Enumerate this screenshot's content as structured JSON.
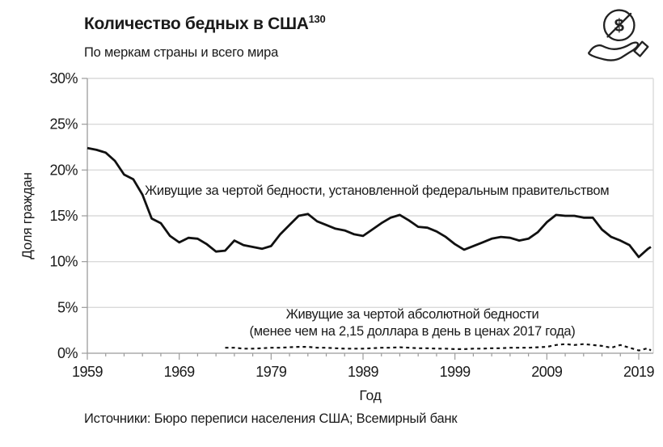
{
  "header": {
    "title": "Количество бедных в США",
    "footnote_ref": "130",
    "subtitle": "По меркам страны и всего мира",
    "icon": "crossed-dollar-in-hand-icon"
  },
  "footer": {
    "source": "Источники: Бюро переписи населения США; Всемирный банк"
  },
  "chart_data": {
    "type": "line",
    "title": "Количество бедных в США",
    "subtitle": "По меркам страны и всего мира",
    "xlabel": "Год",
    "ylabel": "Доля граждан",
    "x_axis": {
      "min": 1959,
      "max": 2021,
      "minor_tick_step": 2
    },
    "y_axis": {
      "min": 0,
      "max": 30,
      "unit": "%"
    },
    "x_ticks": [
      {
        "value": 1959,
        "label": "1959"
      },
      {
        "value": 1969,
        "label": "1969"
      },
      {
        "value": 1979,
        "label": "1979"
      },
      {
        "value": 1989,
        "label": "1989"
      },
      {
        "value": 1999,
        "label": "1999"
      },
      {
        "value": 2009,
        "label": "2009"
      },
      {
        "value": 2019,
        "label": "2019"
      }
    ],
    "y_ticks": [
      {
        "value": 0,
        "label": "0%"
      },
      {
        "value": 5,
        "label": "5%"
      },
      {
        "value": 10,
        "label": "10%"
      },
      {
        "value": 15,
        "label": "15%"
      },
      {
        "value": 20,
        "label": "20%"
      },
      {
        "value": 25,
        "label": "25%"
      },
      {
        "value": 30,
        "label": "30%"
      }
    ],
    "grid": true,
    "legend_position": "inline-annotations",
    "colors": {
      "line": "#111111",
      "grid": "#dadada",
      "axis": "#9b9b9b",
      "text": "#1a1a1a"
    },
    "series": [
      {
        "name": "federal-poverty-line",
        "label": "Живущие за чертой бедности, установленной федеральным правительством",
        "style": "solid",
        "width": 2.8,
        "color": "#111111",
        "start_year": 1959,
        "values": [
          22.4,
          22.2,
          21.9,
          21.0,
          19.5,
          19.0,
          17.3,
          14.7,
          14.2,
          12.8,
          12.1,
          12.6,
          12.5,
          11.9,
          11.1,
          11.2,
          12.3,
          11.8,
          11.6,
          11.4,
          11.7,
          13.0,
          14.0,
          15.0,
          15.2,
          14.4,
          14.0,
          13.6,
          13.4,
          13.0,
          12.8,
          13.5,
          14.2,
          14.8,
          15.1,
          14.5,
          13.8,
          13.7,
          13.3,
          12.7,
          11.9,
          11.3,
          11.7,
          12.1,
          12.5,
          12.7,
          12.6,
          12.3,
          12.5,
          13.2,
          14.3,
          15.1,
          15.0,
          15.0,
          14.8,
          14.8,
          13.5,
          12.7,
          12.3,
          11.8,
          10.5,
          11.4,
          11.6
        ]
      },
      {
        "name": "absolute-poverty-line",
        "label_line1": "Живущие за чертой абсолютной бедности",
        "label_line2": "(менее чем на 2,15 доллара в день в ценах 2017 года)",
        "style": "dashed",
        "width": 2.2,
        "dash": "4 4",
        "color": "#111111",
        "start_year": 1974,
        "values": [
          0.6,
          0.6,
          0.5,
          0.5,
          0.55,
          0.6,
          0.6,
          0.65,
          0.7,
          0.7,
          0.6,
          0.6,
          0.55,
          0.5,
          0.5,
          0.5,
          0.55,
          0.6,
          0.6,
          0.65,
          0.6,
          0.55,
          0.55,
          0.5,
          0.5,
          0.45,
          0.45,
          0.5,
          0.5,
          0.55,
          0.55,
          0.6,
          0.6,
          0.6,
          0.65,
          0.7,
          0.9,
          1.0,
          0.9,
          1.0,
          0.9,
          0.8,
          0.6,
          0.9,
          0.6,
          0.3,
          0.55,
          0.3
        ]
      }
    ]
  }
}
